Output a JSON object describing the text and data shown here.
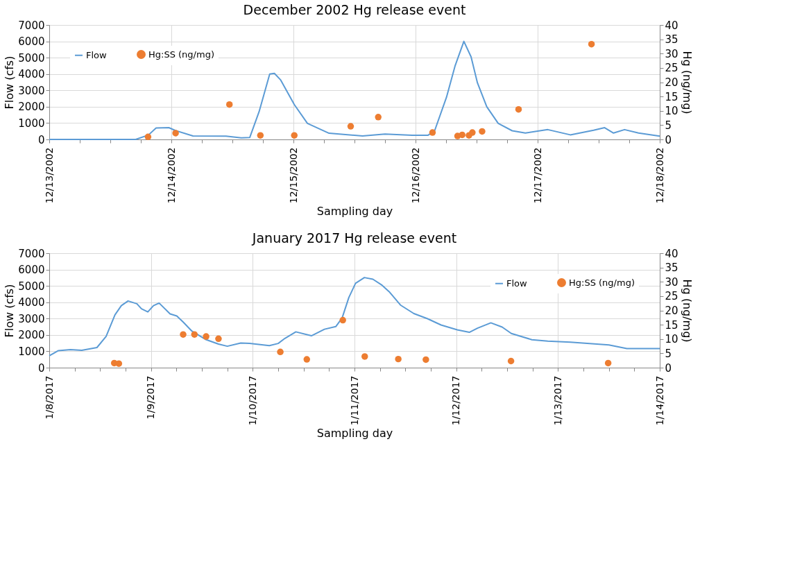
{
  "chart_data": [
    {
      "type": "line",
      "title": "December 2002 Hg release event",
      "xlabel": "Sampling day",
      "ylabel": "Flow (cfs)",
      "y2label": "Hg (ng/mg)",
      "xlim": [
        "2002-12-13T00:00",
        "2002-12-18T00:00"
      ],
      "xticks": [
        {
          "value": "2002-12-13T00:00",
          "label": "12/13/2002"
        },
        {
          "value": "2002-12-13T06:00",
          "label": null
        },
        {
          "value": "2002-12-13T12:00",
          "label": null
        },
        {
          "value": "2002-12-13T18:00",
          "label": null
        },
        {
          "value": "2002-12-14T00:00",
          "label": "12/14/2002"
        },
        {
          "value": "2002-12-14T06:00",
          "label": null
        },
        {
          "value": "2002-12-14T12:00",
          "label": null
        },
        {
          "value": "2002-12-14T18:00",
          "label": null
        },
        {
          "value": "2002-12-15T00:00",
          "label": "12/15/2002"
        },
        {
          "value": "2002-12-15T06:00",
          "label": null
        },
        {
          "value": "2002-12-15T12:00",
          "label": null
        },
        {
          "value": "2002-12-15T18:00",
          "label": null
        },
        {
          "value": "2002-12-16T00:00",
          "label": "12/16/2002"
        },
        {
          "value": "2002-12-16T06:00",
          "label": null
        },
        {
          "value": "2002-12-16T12:00",
          "label": null
        },
        {
          "value": "2002-12-16T18:00",
          "label": null
        },
        {
          "value": "2002-12-17T00:00",
          "label": "12/17/2002"
        },
        {
          "value": "2002-12-17T06:00",
          "label": null
        },
        {
          "value": "2002-12-17T12:00",
          "label": null
        },
        {
          "value": "2002-12-17T18:00",
          "label": null
        },
        {
          "value": "2002-12-18T00:00",
          "label": "12/18/2002"
        }
      ],
      "ylim": [
        0,
        7000
      ],
      "yticks": [
        0,
        1000,
        2000,
        3000,
        4000,
        5000,
        6000,
        7000
      ],
      "y2lim": [
        0,
        40
      ],
      "y2ticks": [
        0,
        5,
        10,
        15,
        20,
        25,
        30,
        35,
        40
      ],
      "grid": true,
      "legend": "top left",
      "line_style": "solid",
      "series": [
        {
          "name": "Flow",
          "color": "#5b9bd5",
          "x": [
            "2002-12-13T00:00",
            "2002-12-13T17:00",
            "2002-12-13T19:30",
            "2002-12-13T21:00",
            "2002-12-13T23:30",
            "2002-12-14T00:45",
            "2002-12-14T04:15",
            "2002-12-14T10:45",
            "2002-12-14T13:45",
            "2002-12-14T15:25",
            "2002-12-14T17:15",
            "2002-12-14T19:20",
            "2002-12-14T20:15",
            "2002-12-14T21:30",
            "2002-12-15T00:10",
            "2002-12-15T02:45",
            "2002-12-15T07:00",
            "2002-12-15T13:35",
            "2002-12-15T18:00",
            "2002-12-15T23:20",
            "2002-12-16T02:25",
            "2002-12-16T03:45",
            "2002-12-16T06:05",
            "2002-12-16T07:45",
            "2002-12-16T09:30",
            "2002-12-16T10:55",
            "2002-12-16T12:10",
            "2002-12-16T14:00",
            "2002-12-16T16:15",
            "2002-12-16T19:00",
            "2002-12-16T21:35",
            "2002-12-17T02:00",
            "2002-12-17T06:25",
            "2002-12-17T11:00",
            "2002-12-17T13:10",
            "2002-12-17T14:55",
            "2002-12-17T17:05",
            "2002-12-17T19:50",
            "2002-12-18T00:00"
          ],
          "values": [
            0,
            0,
            270,
            700,
            720,
            550,
            210,
            200,
            100,
            120,
            1700,
            4000,
            4040,
            3630,
            2130,
            980,
            380,
            210,
            330,
            250,
            250,
            530,
            2580,
            4480,
            6000,
            5050,
            3460,
            2000,
            980,
            530,
            390,
            600,
            280,
            560,
            720,
            390,
            600,
            390,
            200
          ]
        },
        {
          "name": "Hg:SS (ng/mg)",
          "type": "scatter",
          "axis": "y2",
          "marker": "circle",
          "color": "#ed7d31",
          "x": [
            "2002-12-13T19:25",
            "2002-12-14T00:50",
            "2002-12-14T11:25",
            "2002-12-14T17:30",
            "2002-12-15T00:10",
            "2002-12-15T11:15",
            "2002-12-15T16:40",
            "2002-12-16T03:20",
            "2002-12-16T08:15",
            "2002-12-16T09:10",
            "2002-12-16T10:30",
            "2002-12-16T11:10",
            "2002-12-16T13:05",
            "2002-12-16T20:15",
            "2002-12-17T10:35"
          ],
          "values": [
            0.9,
            2.2,
            12.2,
            1.4,
            1.4,
            4.6,
            7.8,
            2.4,
            1.2,
            1.6,
            1.4,
            2.4,
            2.8,
            10.5,
            33.3
          ]
        }
      ]
    },
    {
      "type": "line",
      "title": "January 2017 Hg release event",
      "xlabel": "Sampling day",
      "ylabel": "Flow (cfs)",
      "y2label": "Hg (ng/mg)",
      "xlim": [
        "2017-01-08T00:00",
        "2017-01-14T00:00"
      ],
      "xticks": [
        {
          "value": "2017-01-08T00:00",
          "label": "1/8/2017"
        },
        {
          "value": "2017-01-08T06:00",
          "label": null
        },
        {
          "value": "2017-01-08T12:00",
          "label": null
        },
        {
          "value": "2017-01-08T18:00",
          "label": null
        },
        {
          "value": "2017-01-09T00:00",
          "label": "1/9/2017"
        },
        {
          "value": "2017-01-09T06:00",
          "label": null
        },
        {
          "value": "2017-01-09T12:00",
          "label": null
        },
        {
          "value": "2017-01-09T18:00",
          "label": null
        },
        {
          "value": "2017-01-10T00:00",
          "label": "1/10/2017"
        },
        {
          "value": "2017-01-10T06:00",
          "label": null
        },
        {
          "value": "2017-01-10T12:00",
          "label": null
        },
        {
          "value": "2017-01-10T18:00",
          "label": null
        },
        {
          "value": "2017-01-11T00:00",
          "label": "1/11/2017"
        },
        {
          "value": "2017-01-11T06:00",
          "label": null
        },
        {
          "value": "2017-01-11T12:00",
          "label": null
        },
        {
          "value": "2017-01-11T18:00",
          "label": null
        },
        {
          "value": "2017-01-12T00:00",
          "label": "1/12/2017"
        },
        {
          "value": "2017-01-12T06:00",
          "label": null
        },
        {
          "value": "2017-01-12T12:00",
          "label": null
        },
        {
          "value": "2017-01-12T18:00",
          "label": null
        },
        {
          "value": "2017-01-13T00:00",
          "label": "1/13/2017"
        },
        {
          "value": "2017-01-13T06:00",
          "label": null
        },
        {
          "value": "2017-01-13T12:00",
          "label": null
        },
        {
          "value": "2017-01-13T18:00",
          "label": null
        },
        {
          "value": "2017-01-14T00:00",
          "label": "1/14/2017"
        }
      ],
      "ylim": [
        0,
        7000
      ],
      "yticks": [
        0,
        1000,
        2000,
        3000,
        4000,
        5000,
        6000,
        7000
      ],
      "y2lim": [
        0,
        40
      ],
      "y2ticks": [
        0,
        5,
        10,
        15,
        20,
        25,
        30,
        35,
        40
      ],
      "grid": true,
      "legend": "top right",
      "line_style": "solid",
      "series": [
        {
          "name": "Flow",
          "color": "#5b9bd5",
          "x": [
            "2017-01-08T00:00",
            "2017-01-08T02:10",
            "2017-01-08T05:00",
            "2017-01-08T07:40",
            "2017-01-08T11:15",
            "2017-01-08T13:25",
            "2017-01-08T15:30",
            "2017-01-08T17:00",
            "2017-01-08T18:35",
            "2017-01-08T20:40",
            "2017-01-08T21:45",
            "2017-01-08T23:15",
            "2017-01-09T00:35",
            "2017-01-09T01:55",
            "2017-01-09T04:30",
            "2017-01-09T06:05",
            "2017-01-09T07:35",
            "2017-01-09T09:40",
            "2017-01-09T12:50",
            "2017-01-09T15:55",
            "2017-01-09T18:00",
            "2017-01-09T21:10",
            "2017-01-09T23:15",
            "2017-01-10T03:55",
            "2017-01-10T06:00",
            "2017-01-10T07:35",
            "2017-01-10T10:10",
            "2017-01-10T13:50",
            "2017-01-10T16:55",
            "2017-01-10T19:35",
            "2017-01-10T21:05",
            "2017-01-10T22:40",
            "2017-01-11T00:15",
            "2017-01-11T02:20",
            "2017-01-11T04:20",
            "2017-01-11T06:30",
            "2017-01-11T08:10",
            "2017-01-11T10:50",
            "2017-01-11T14:00",
            "2017-01-11T17:15",
            "2017-01-11T20:25",
            "2017-01-12T00:15",
            "2017-01-12T03:05",
            "2017-01-12T05:00",
            "2017-01-12T08:10",
            "2017-01-12T10:50",
            "2017-01-12T13:00",
            "2017-01-12T17:50",
            "2017-01-12T21:35",
            "2017-01-13T02:55",
            "2017-01-13T12:00",
            "2017-01-13T16:15",
            "2017-01-14T00:00"
          ],
          "values": [
            730,
            1040,
            1100,
            1060,
            1230,
            1910,
            3230,
            3790,
            4080,
            3910,
            3600,
            3410,
            3790,
            3950,
            3290,
            3160,
            2790,
            2230,
            1730,
            1440,
            1310,
            1510,
            1480,
            1350,
            1480,
            1790,
            2190,
            1950,
            2350,
            2510,
            3040,
            4290,
            5160,
            5510,
            5410,
            5040,
            4650,
            3830,
            3310,
            2990,
            2610,
            2310,
            2160,
            2410,
            2740,
            2480,
            2090,
            1710,
            1620,
            1560,
            1390,
            1170,
            1170
          ]
        },
        {
          "name": "Hg:SS (ng/mg)",
          "type": "scatter",
          "axis": "y2",
          "marker": "circle",
          "color": "#ed7d31",
          "x": [
            "2017-01-08T15:20",
            "2017-01-08T16:25",
            "2017-01-09T07:35",
            "2017-01-09T10:15",
            "2017-01-09T13:00",
            "2017-01-09T15:55",
            "2017-01-10T06:30",
            "2017-01-10T12:45",
            "2017-01-10T21:15",
            "2017-01-11T02:25",
            "2017-01-11T10:20",
            "2017-01-11T16:50",
            "2017-01-12T12:55",
            "2017-01-13T11:50"
          ],
          "values": [
            1.6,
            1.4,
            11.6,
            11.6,
            10.9,
            10.1,
            5.5,
            2.9,
            16.6,
            3.9,
            3.0,
            2.8,
            2.3,
            1.6
          ]
        }
      ]
    }
  ]
}
